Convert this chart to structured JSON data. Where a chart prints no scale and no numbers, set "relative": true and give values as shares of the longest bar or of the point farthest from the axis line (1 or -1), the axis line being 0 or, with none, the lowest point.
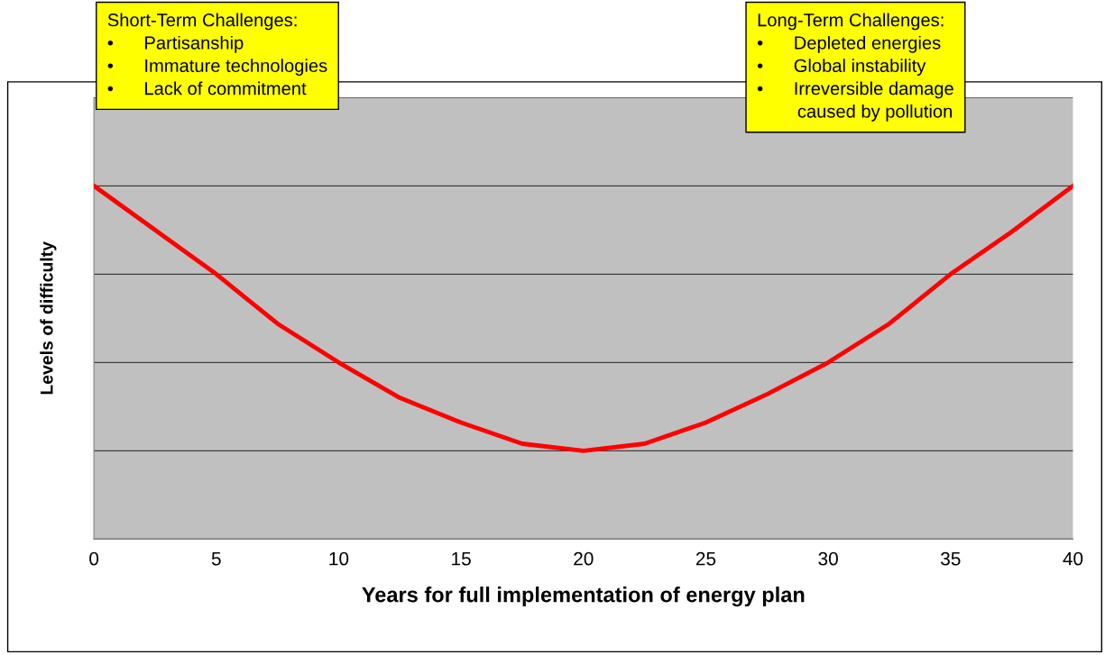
{
  "chart_data": {
    "type": "line",
    "relative": true,
    "xlabel": "Years for full implementation of energy plan",
    "ylabel": "Levels of difficulty",
    "x": [
      0,
      2.5,
      5,
      7.5,
      10,
      12.5,
      15,
      17.5,
      20,
      22.5,
      25,
      27.5,
      30,
      32.5,
      35,
      37.5,
      40
    ],
    "series": [
      {
        "color": "#ff0000",
        "values": [
          1,
          0.875,
          0.75,
          0.61,
          0.5,
          0.4,
          0.33,
          0.27,
          0.25,
          0.27,
          0.33,
          0.41,
          0.5,
          0.61,
          0.75,
          0.87,
          1
        ]
      }
    ],
    "xlim": [
      0,
      40
    ],
    "xticks": [
      0,
      5,
      10,
      15,
      20,
      25,
      30,
      35,
      40
    ],
    "grid": "y",
    "marker": "none",
    "line_style": "solid",
    "tick_labels": "x",
    "annotations": [
      "Short-Term Challenges:\n•      Partisanship\n•      Immature technologies\n•      Lack of commitment",
      "Long-Term Challenges:\n•      Depleted energies\n•      Global instability\n•      Irreversible damage\n        caused by pollution"
    ]
  }
}
